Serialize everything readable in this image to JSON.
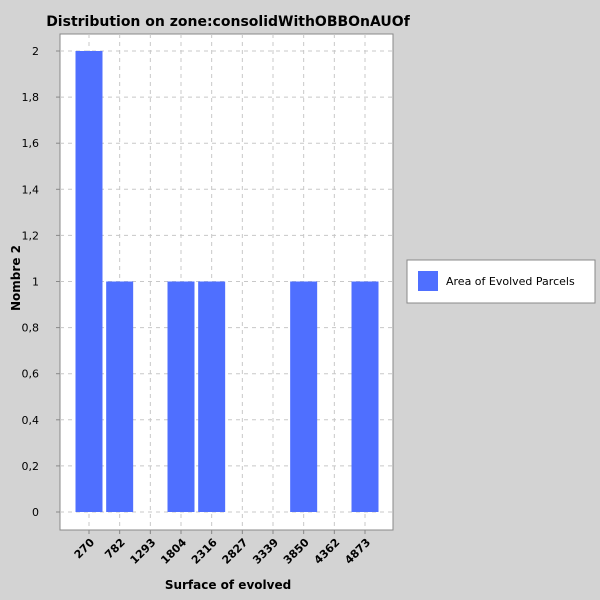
{
  "chart_data": {
    "type": "bar",
    "title": "Distribution on zone:consolidWithOBBOnAUOf",
    "xlabel": "Surface of evolved",
    "ylabel": "Nombre 2",
    "categories": [
      "270",
      "782",
      "1293",
      "1804",
      "2316",
      "2827",
      "3339",
      "3850",
      "4362",
      "4873"
    ],
    "series": [
      {
        "name": "Area of Evolved Parcels",
        "color": "#4f6fff",
        "values": [
          2,
          1,
          0,
          1,
          1,
          0,
          0,
          1,
          0,
          1
        ]
      }
    ],
    "ylim": [
      0,
      2
    ],
    "yticks": [
      "0",
      "0,2",
      "0,4",
      "0,6",
      "0,8",
      "1",
      "1,2",
      "1,4",
      "1,6",
      "1,8",
      "2"
    ],
    "grid": true,
    "legend_position": "right"
  }
}
